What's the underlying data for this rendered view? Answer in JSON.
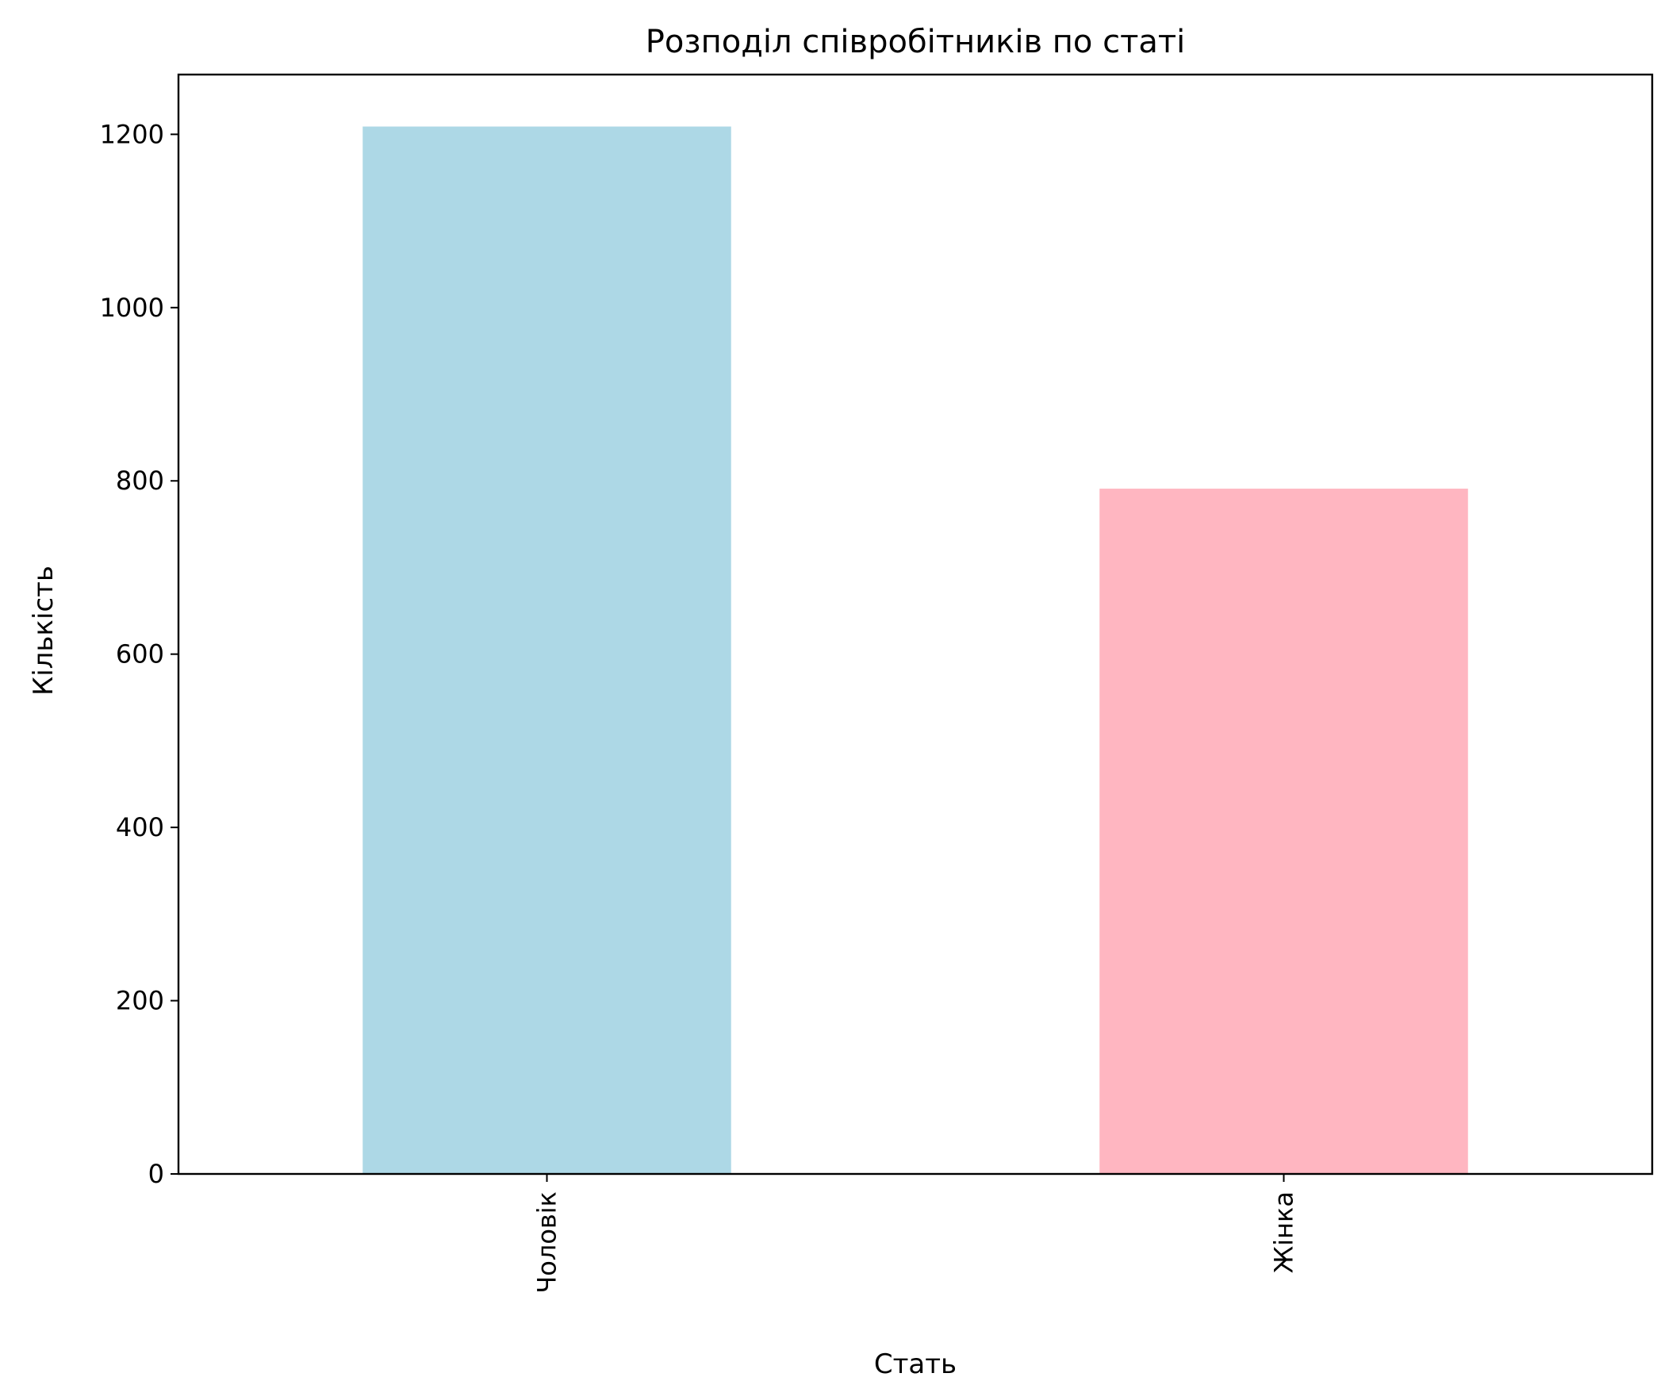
{
  "chart_data": {
    "type": "bar",
    "title": "Розподіл співробітників по статі",
    "xlabel": "Стать",
    "ylabel": "Кількість",
    "categories": [
      "Чоловік",
      "Жінка"
    ],
    "values": [
      1209,
      791
    ],
    "colors": [
      "#add8e6",
      "#ffb6c1"
    ],
    "ylim": [
      0,
      1269
    ],
    "yticks": [
      0,
      200,
      400,
      600,
      800,
      1000,
      1200
    ],
    "xtick_rotation": -90,
    "grid": false,
    "legend": null
  }
}
